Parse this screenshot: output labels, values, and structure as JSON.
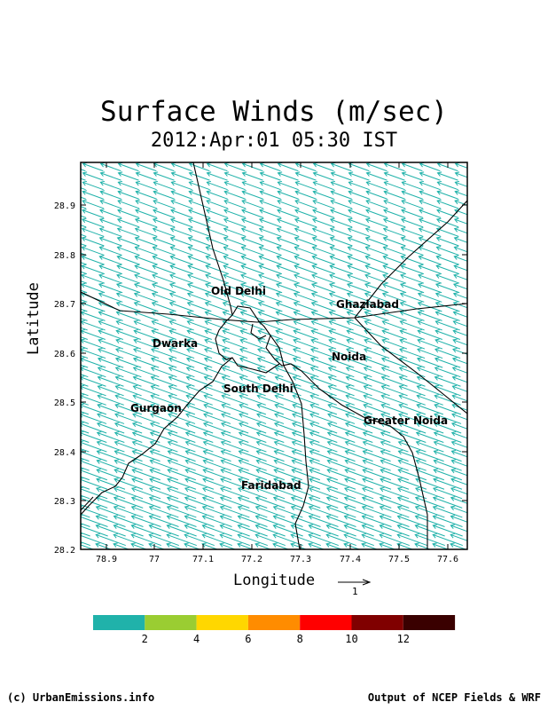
{
  "title": "Surface Winds (m/sec)",
  "subtitle": "2012:Apr:01 05:30 IST",
  "axes": {
    "xlabel": "Longitude",
    "ylabel": "Latitude",
    "xticks": [
      "78.9",
      "77",
      "77.1",
      "77.2",
      "77.3",
      "77.4",
      "77.5",
      "77.6"
    ],
    "yticks": [
      "28.9",
      "28.8",
      "28.7",
      "28.6",
      "28.5",
      "28.4",
      "28.3",
      "28.2"
    ]
  },
  "places": [
    {
      "name": "Old Delhi"
    },
    {
      "name": "Ghaziabad"
    },
    {
      "name": "Dwarka"
    },
    {
      "name": "Noida"
    },
    {
      "name": "South Delhi"
    },
    {
      "name": "Gurgaon"
    },
    {
      "name": "Greater Noida"
    },
    {
      "name": "Faridabad"
    }
  ],
  "wind": {
    "direction": "from east-southeast toward west-northwest",
    "color": "#20b2aa",
    "reference_vector_label": "1"
  },
  "colorbar": {
    "colors": [
      "#20b2aa",
      "#9acd32",
      "#ffd700",
      "#ff8c00",
      "#ff0000",
      "#800000",
      "#3a0000"
    ],
    "labels": [
      "2",
      "4",
      "6",
      "8",
      "10",
      "12"
    ]
  },
  "footer": {
    "left": "(c) UrbanEmissions.info",
    "right": "Output of NCEP Fields & WRF"
  }
}
